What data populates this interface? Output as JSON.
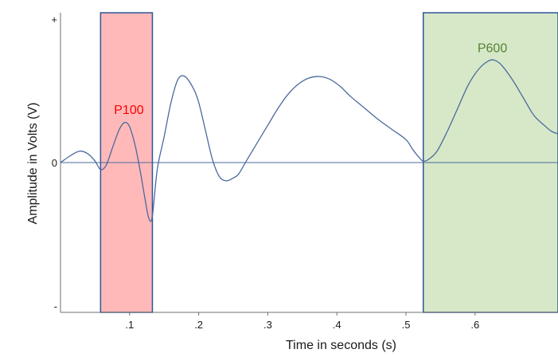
{
  "chart_data": {
    "type": "line",
    "xlabel": "Time in seconds (s)",
    "ylabel": "Amplitude in Volts (V)",
    "xlim": [
      0,
      0.72
    ],
    "ylim": [
      -1,
      1
    ],
    "x_ticks": [
      {
        "value": 0.1,
        "label": ".1"
      },
      {
        "value": 0.2,
        "label": ".2"
      },
      {
        "value": 0.3,
        "label": ".3"
      },
      {
        "value": 0.4,
        "label": ".4"
      },
      {
        "value": 0.5,
        "label": ".5"
      },
      {
        "value": 0.6,
        "label": ".6"
      }
    ],
    "y_ticks": [
      {
        "value": 1,
        "label": "+"
      },
      {
        "value": 0,
        "label": "0"
      },
      {
        "value": -1,
        "label": "-"
      }
    ],
    "regions": [
      {
        "label": "P100",
        "x_start": 0.058,
        "x_end": 0.133,
        "fill": "#ffb9b9",
        "border": "#2f5597",
        "label_color": "#ff0000",
        "label_x": 0.099,
        "label_y": 0.34
      },
      {
        "label": "P600",
        "x_start": 0.525,
        "x_end": 0.72,
        "fill": "#d7e8c8",
        "border": "#2f5597",
        "label_color": "#548235",
        "label_x": 0.625,
        "label_y": 0.77
      }
    ],
    "series": [
      {
        "color": "#4a6a9e",
        "x": [
          0,
          0.015,
          0.028,
          0.04,
          0.05,
          0.058,
          0.066,
          0.075,
          0.085,
          0.093,
          0.1,
          0.108,
          0.115,
          0.122,
          0.128,
          0.133,
          0.14,
          0.15,
          0.16,
          0.17,
          0.18,
          0.192,
          0.2,
          0.21,
          0.22,
          0.23,
          0.24,
          0.25,
          0.258,
          0.27,
          0.28,
          0.29,
          0.3,
          0.315,
          0.33,
          0.345,
          0.36,
          0.375,
          0.39,
          0.405,
          0.42,
          0.44,
          0.46,
          0.48,
          0.5,
          0.51,
          0.52,
          0.525,
          0.532,
          0.545,
          0.56,
          0.575,
          0.59,
          0.605,
          0.62,
          0.63,
          0.64,
          0.655,
          0.67,
          0.685,
          0.7,
          0.71,
          0.72
        ],
        "y": [
          0,
          0.05,
          0.08,
          0.06,
          0.01,
          -0.05,
          -0.02,
          0.1,
          0.23,
          0.28,
          0.25,
          0.12,
          -0.05,
          -0.25,
          -0.4,
          -0.38,
          -0.05,
          0.18,
          0.42,
          0.58,
          0.6,
          0.52,
          0.42,
          0.22,
          0.02,
          -0.1,
          -0.13,
          -0.11,
          -0.08,
          0.02,
          0.1,
          0.18,
          0.26,
          0.38,
          0.48,
          0.55,
          0.59,
          0.6,
          0.58,
          0.53,
          0.46,
          0.38,
          0.3,
          0.23,
          0.16,
          0.09,
          0.03,
          0.01,
          0.02,
          0.08,
          0.22,
          0.38,
          0.54,
          0.65,
          0.71,
          0.71,
          0.67,
          0.57,
          0.45,
          0.33,
          0.26,
          0.22,
          0.2
        ]
      }
    ]
  }
}
